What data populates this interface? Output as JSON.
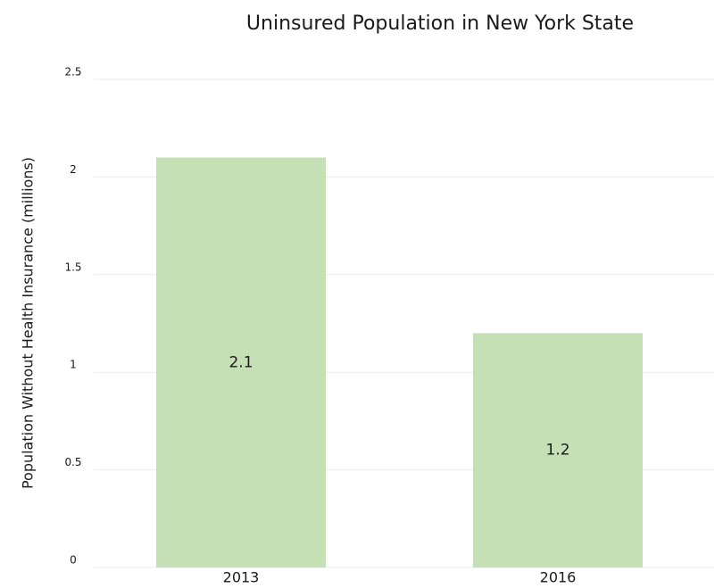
{
  "chart_data": {
    "type": "bar",
    "title": "Uninsured Population in New York State",
    "y_label": "Population Without Health Insurance (millions)",
    "categories": [
      "2013",
      "2016"
    ],
    "values": [
      2.1,
      1.2
    ],
    "color": "#c5e0b4",
    "ylim": [
      0,
      2.5
    ],
    "yticks": [
      0,
      0.5,
      1,
      1.5,
      2,
      2.5
    ],
    "grid": true,
    "show_value_labels": true
  }
}
